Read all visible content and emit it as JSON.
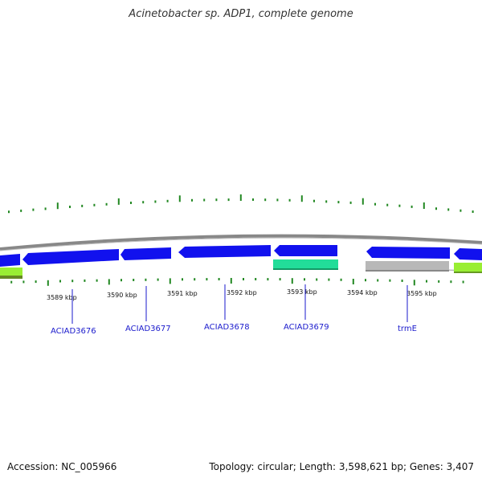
{
  "title": "Acinetobacter sp. ADP1, complete genome",
  "footer": {
    "accession": "Accession: NC_005966",
    "summary": "Topology: circular; Length: 3,598,621 bp; Genes: 3,407"
  },
  "colors": {
    "cds_blue": "#1111ee",
    "rna_green": "#22dd99",
    "pseudo_grey": "#b8b8b8",
    "lime": "#99ee33",
    "tick_green": "#228822",
    "label_blue": "#1a1acc",
    "backbone": "#888888"
  },
  "scale_labels": [
    {
      "text": "3589 kbp",
      "kbp": 3589
    },
    {
      "text": "3590 kbp",
      "kbp": 3590
    },
    {
      "text": "3591 kbp",
      "kbp": 3591
    },
    {
      "text": "3592 kbp",
      "kbp": 3592
    },
    {
      "text": "3593 kbp",
      "kbp": 3593
    },
    {
      "text": "3594 kbp",
      "kbp": 3594
    },
    {
      "text": "3595 kbp",
      "kbp": 3595
    }
  ],
  "genes": [
    {
      "name": "ACIAD3676"
    },
    {
      "name": "ACIAD3677"
    },
    {
      "name": "ACIAD3678"
    },
    {
      "name": "ACIAD3679"
    },
    {
      "name": "trmE"
    }
  ]
}
